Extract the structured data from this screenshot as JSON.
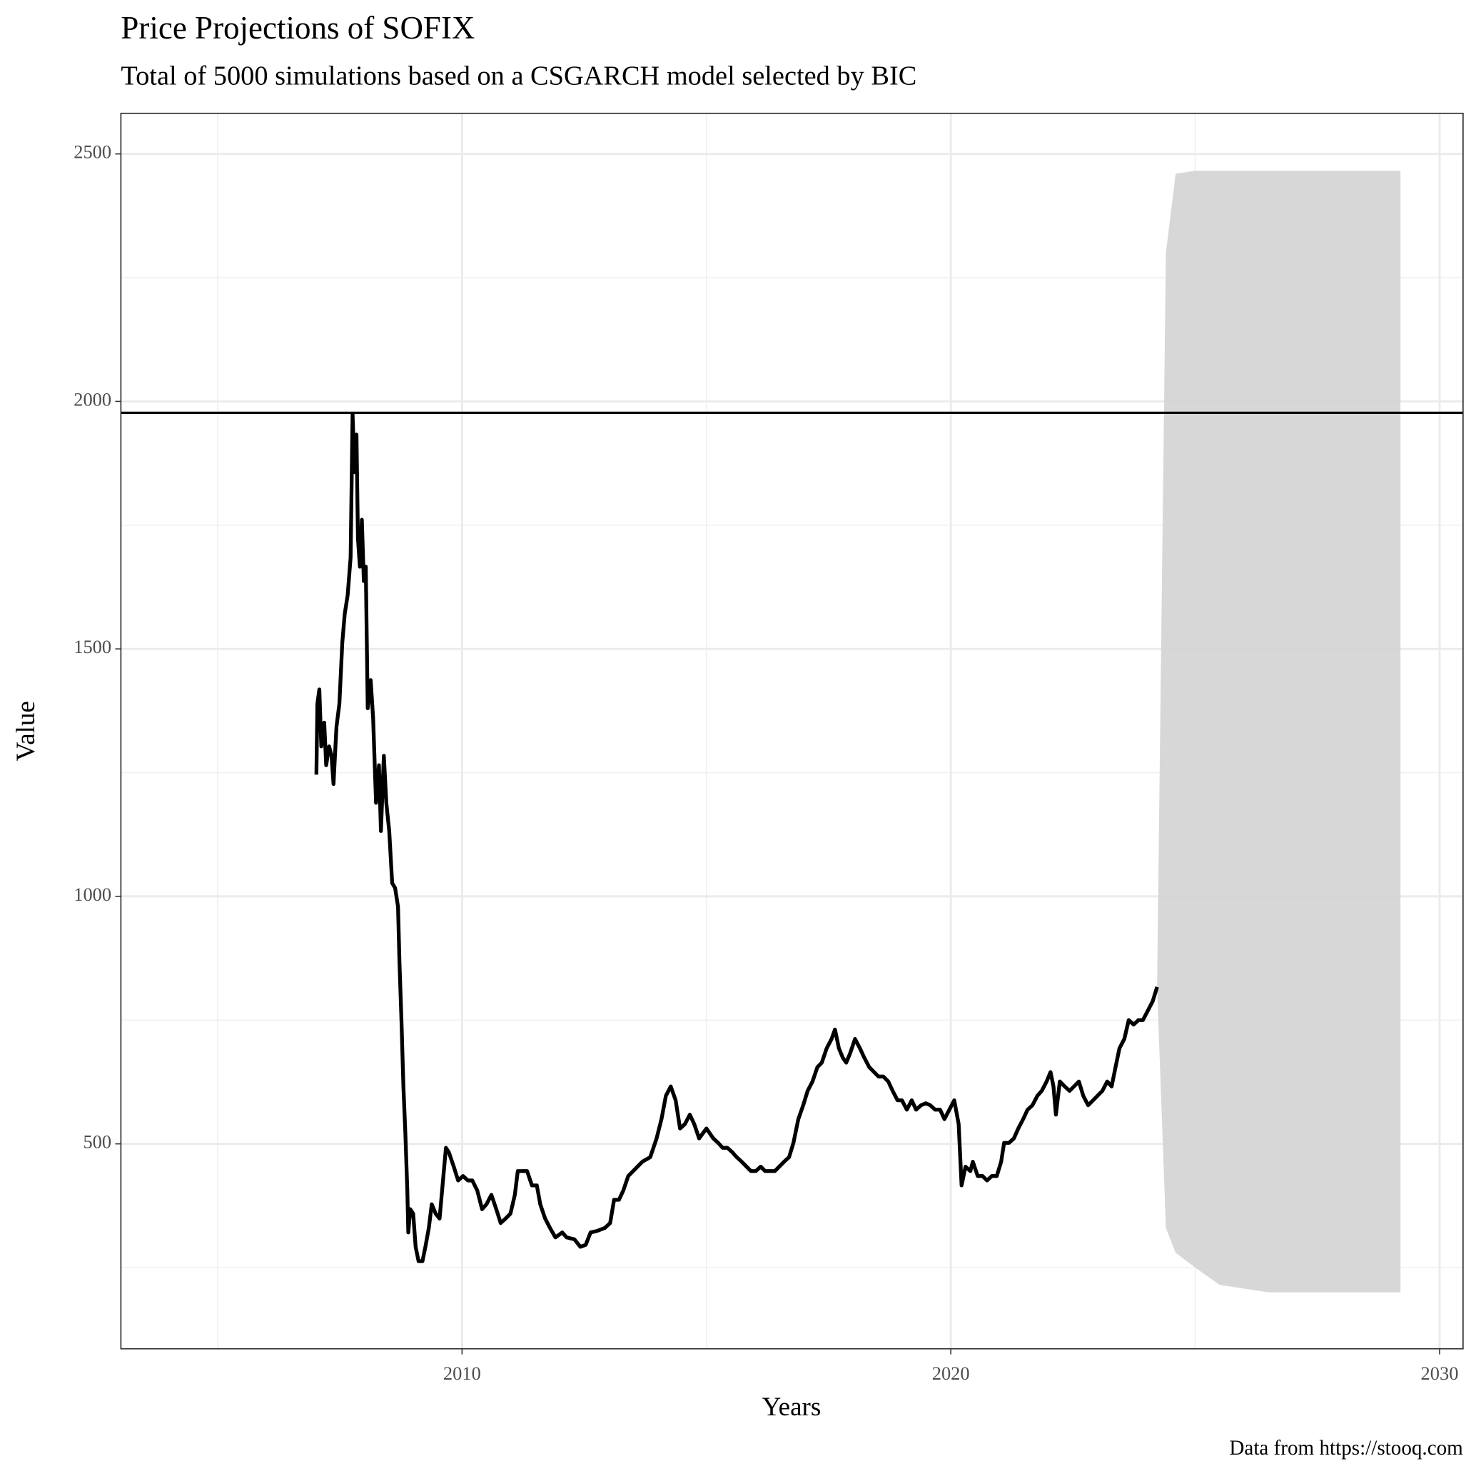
{
  "chart_data": {
    "type": "line",
    "title": "Price Projections of SOFIX",
    "subtitle": "Total of 5000 simulations based on a CSGARCH model selected by BIC",
    "x_label": "Years",
    "y_label": "Value",
    "caption": "Data from https://stooq.com",
    "xlim": [
      2003.02,
      2030.48
    ],
    "ylim": [
      86,
      2582
    ],
    "xticks": [
      2010,
      2020,
      2030
    ],
    "yticks": [
      500,
      1000,
      1500,
      2000,
      2500
    ],
    "grid": true,
    "hline": {
      "value": 1977,
      "color": "#000000"
    },
    "band": {
      "color": "#d3d3d3",
      "x": [
        2024.22,
        2024.4,
        2024.6,
        2025.0,
        2025.5,
        2026.5,
        2029.2
      ],
      "upper": [
        817,
        2300,
        2460,
        2466,
        2466,
        2466,
        2466
      ],
      "lower": [
        817,
        330,
        280,
        250,
        215,
        200,
        200
      ]
    },
    "series": [
      {
        "color": "#000000",
        "x": [
          2007.02,
          2007.04,
          2007.08,
          2007.12,
          2007.18,
          2007.22,
          2007.28,
          2007.33,
          2007.37,
          2007.43,
          2007.49,
          2007.55,
          2007.6,
          2007.66,
          2007.72,
          2007.76,
          2007.8,
          2007.84,
          2007.87,
          2007.91,
          2007.95,
          2007.99,
          2008.03,
          2008.07,
          2008.13,
          2008.18,
          2008.24,
          2008.3,
          2008.34,
          2008.4,
          2008.45,
          2008.51,
          2008.57,
          2008.63,
          2008.69,
          2008.72,
          2008.76,
          2008.8,
          2008.84,
          2008.88,
          2008.9,
          2008.94,
          2009.0,
          2009.05,
          2009.11,
          2009.19,
          2009.25,
          2009.32,
          2009.38,
          2009.46,
          2009.54,
          2009.61,
          2009.67,
          2009.73,
          2009.83,
          2009.92,
          2010.02,
          2010.12,
          2010.21,
          2010.31,
          2010.41,
          2010.5,
          2010.6,
          2010.7,
          2010.79,
          2010.89,
          2010.99,
          2011.08,
          2011.14,
          2011.22,
          2011.33,
          2011.43,
          2011.53,
          2011.6,
          2011.7,
          2011.8,
          2011.91,
          2012.05,
          2012.14,
          2012.3,
          2012.42,
          2012.53,
          2012.63,
          2012.76,
          2012.92,
          2013.03,
          2013.11,
          2013.21,
          2013.3,
          2013.4,
          2013.5,
          2013.59,
          2013.69,
          2013.85,
          2013.98,
          2014.08,
          2014.17,
          2014.27,
          2014.37,
          2014.46,
          2014.56,
          2014.66,
          2014.75,
          2014.85,
          2015.0,
          2015.14,
          2015.24,
          2015.33,
          2015.43,
          2015.53,
          2015.62,
          2015.72,
          2015.82,
          2015.91,
          2016.01,
          2016.11,
          2016.2,
          2016.3,
          2016.4,
          2016.49,
          2016.59,
          2016.69,
          2016.78,
          2016.88,
          2016.98,
          2017.07,
          2017.17,
          2017.27,
          2017.36,
          2017.46,
          2017.56,
          2017.63,
          2017.71,
          2017.79,
          2017.86,
          2017.94,
          2018.04,
          2018.14,
          2018.23,
          2018.33,
          2018.43,
          2018.52,
          2018.62,
          2018.72,
          2018.81,
          2018.91,
          2019.0,
          2019.1,
          2019.2,
          2019.29,
          2019.39,
          2019.49,
          2019.58,
          2019.68,
          2019.78,
          2019.87,
          2019.97,
          2020.07,
          2020.16,
          2020.22,
          2020.3,
          2020.4,
          2020.45,
          2020.55,
          2020.65,
          2020.74,
          2020.84,
          2020.94,
          2021.03,
          2021.09,
          2021.19,
          2021.29,
          2021.38,
          2021.48,
          2021.57,
          2021.67,
          2021.77,
          2021.86,
          2021.96,
          2022.04,
          2022.1,
          2022.15,
          2022.23,
          2022.33,
          2022.43,
          2022.52,
          2022.62,
          2022.71,
          2022.81,
          2022.91,
          2023.0,
          2023.1,
          2023.2,
          2023.29,
          2023.37,
          2023.45,
          2023.55,
          2023.64,
          2023.74,
          2023.84,
          2023.93,
          2024.03,
          2024.13,
          2024.22
        ],
        "values": [
          1246,
          1389,
          1418,
          1303,
          1351,
          1265,
          1303,
          1284,
          1227,
          1342,
          1389,
          1513,
          1571,
          1609,
          1685,
          1975,
          1857,
          1933,
          1723,
          1666,
          1761,
          1637,
          1666,
          1380,
          1437,
          1361,
          1189,
          1265,
          1132,
          1284,
          1189,
          1132,
          1027,
          1017,
          979,
          865,
          750,
          616,
          521,
          406,
          321,
          368,
          359,
          292,
          263,
          263,
          292,
          330,
          378,
          359,
          349,
          426,
          492,
          483,
          454,
          426,
          435,
          426,
          426,
          406,
          368,
          378,
          397,
          368,
          340,
          349,
          359,
          397,
          445,
          445,
          445,
          416,
          416,
          378,
          349,
          330,
          311,
          321,
          311,
          307,
          292,
          296,
          321,
          324,
          330,
          340,
          387,
          387,
          406,
          435,
          445,
          454,
          464,
          473,
          511,
          550,
          597,
          616,
          588,
          531,
          540,
          559,
          540,
          511,
          531,
          511,
          502,
          492,
          492,
          483,
          473,
          464,
          454,
          445,
          445,
          454,
          445,
          445,
          445,
          454,
          464,
          473,
          502,
          550,
          578,
          607,
          626,
          655,
          664,
          693,
          712,
          731,
          693,
          674,
          664,
          683,
          712,
          693,
          674,
          655,
          645,
          636,
          636,
          626,
          607,
          588,
          588,
          569,
          588,
          569,
          578,
          582,
          578,
          569,
          569,
          550,
          569,
          588,
          540,
          416,
          454,
          445,
          464,
          435,
          435,
          426,
          435,
          435,
          464,
          502,
          502,
          511,
          531,
          550,
          569,
          578,
          597,
          607,
          626,
          645,
          616,
          559,
          626,
          616,
          607,
          616,
          626,
          597,
          578,
          588,
          597,
          607,
          626,
          616,
          655,
          693,
          712,
          750,
          741,
          750,
          750,
          769,
          788,
          817
        ]
      }
    ]
  }
}
